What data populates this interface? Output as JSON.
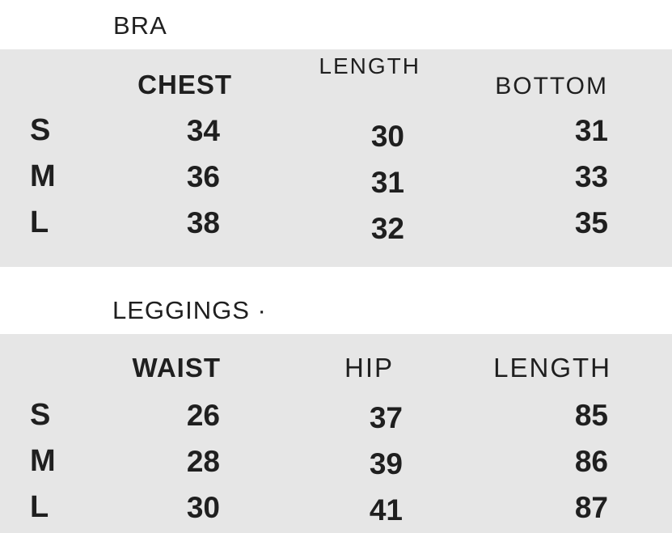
{
  "chart_data": [
    {
      "type": "table",
      "title": "BRA",
      "columns": [
        "CHEST",
        "LENGTH",
        "BOTTOM"
      ],
      "row_labels": [
        "S",
        "M",
        "L"
      ],
      "rows": [
        [
          "34",
          "30",
          "31"
        ],
        [
          "36",
          "31",
          "33"
        ],
        [
          "38",
          "32",
          "35"
        ]
      ]
    },
    {
      "type": "table",
      "title": "LEGGINGS ·",
      "columns": [
        "WAIST",
        "HIP",
        "LENGTH"
      ],
      "row_labels": [
        "S",
        "M",
        "L"
      ],
      "rows": [
        [
          "26",
          "37",
          "85"
        ],
        [
          "28",
          "39",
          "86"
        ],
        [
          "30",
          "41",
          "87"
        ]
      ]
    }
  ],
  "colors": {
    "page_background": "#ffffff",
    "table_background": "#e6e6e6",
    "text": "#1f1f1f"
  }
}
